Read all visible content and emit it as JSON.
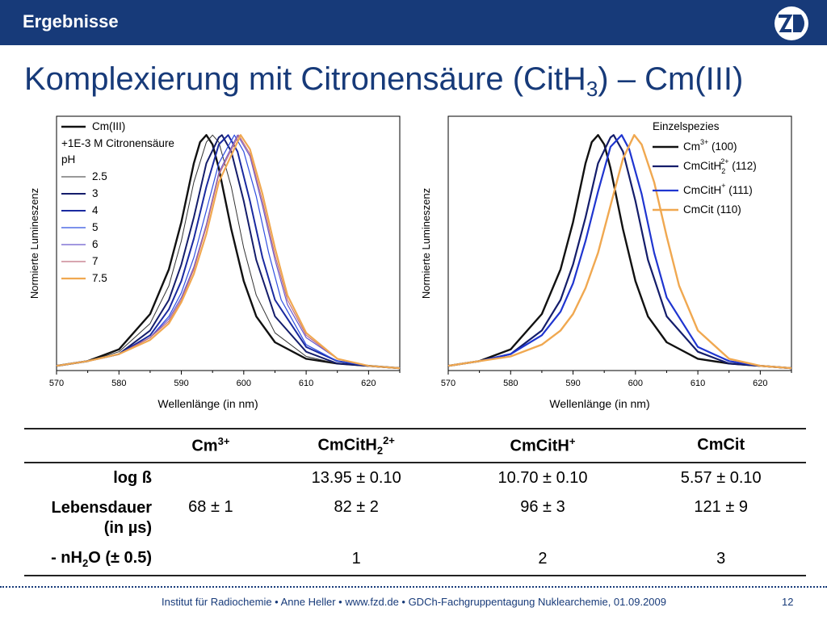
{
  "header": {
    "section": "Ergebnisse",
    "title": "Komplexierung mit Citronensäure (CitH",
    "title_sub": "3",
    "title_tail": ") – Cm(III)"
  },
  "colors": {
    "brand": "#173a79",
    "cm": "#111111",
    "cmcith2": "#141d6b",
    "cmcith": "#1f35d0",
    "cmcit": "#f0a850"
  },
  "chart_data": [
    {
      "type": "line",
      "xlabel": "Wellenlänge (in nm)",
      "ylabel": "Normierte Lumineszenz",
      "xlim": [
        570,
        625
      ],
      "ylim": [
        0,
        1.08
      ],
      "xticks": [
        570,
        580,
        590,
        600,
        610,
        620
      ],
      "legend": {
        "position": "top-left",
        "lines": [
          "Cm(III)",
          "+1E-3 M Citronensäure",
          "pH"
        ]
      },
      "series": [
        {
          "name": "Cm(III)",
          "peak": 594.0,
          "width": 3.6,
          "color": "#111111",
          "stroke": 2.4,
          "x": [
            570,
            575,
            580,
            585,
            588,
            590,
            592,
            593,
            594,
            595,
            596,
            598,
            600,
            602,
            605,
            610,
            615,
            620,
            625
          ],
          "y": [
            0.02,
            0.04,
            0.09,
            0.24,
            0.43,
            0.63,
            0.88,
            0.97,
            1.0,
            0.96,
            0.86,
            0.6,
            0.38,
            0.23,
            0.12,
            0.05,
            0.03,
            0.02,
            0.01
          ]
        },
        {
          "name": "2.5",
          "peak": 595.0,
          "width": 3.8,
          "color": "#333333",
          "stroke": 1.0,
          "x": [
            570,
            575,
            580,
            585,
            588,
            590,
            592,
            594,
            595,
            596,
            598,
            600,
            602,
            605,
            610,
            615,
            620,
            625
          ],
          "y": [
            0.02,
            0.04,
            0.08,
            0.2,
            0.36,
            0.55,
            0.8,
            0.97,
            1.0,
            0.97,
            0.78,
            0.52,
            0.32,
            0.16,
            0.06,
            0.03,
            0.02,
            0.01
          ]
        },
        {
          "name": "3",
          "peak": 596.5,
          "width": 3.9,
          "color": "#141d6b",
          "stroke": 2.0,
          "x": [
            570,
            575,
            580,
            585,
            588,
            590,
            592,
            594,
            596,
            596.5,
            598,
            600,
            602,
            605,
            610,
            615,
            620,
            625
          ],
          "y": [
            0.02,
            0.04,
            0.07,
            0.17,
            0.3,
            0.45,
            0.65,
            0.88,
            0.99,
            1.0,
            0.93,
            0.72,
            0.47,
            0.23,
            0.08,
            0.03,
            0.02,
            0.01
          ]
        },
        {
          "name": "4",
          "peak": 597.5,
          "width": 4.0,
          "color": "#1a2aa0",
          "stroke": 2.0,
          "x": [
            570,
            575,
            580,
            585,
            588,
            590,
            592,
            594,
            596,
            597.5,
            599,
            601,
            603,
            605,
            610,
            615,
            620,
            625
          ],
          "y": [
            0.02,
            0.04,
            0.07,
            0.15,
            0.26,
            0.38,
            0.56,
            0.78,
            0.96,
            1.0,
            0.93,
            0.72,
            0.48,
            0.3,
            0.1,
            0.04,
            0.02,
            0.01
          ]
        },
        {
          "name": "5",
          "peak": 598.5,
          "width": 4.1,
          "color": "#2f4fe0",
          "stroke": 1.2,
          "x": [
            570,
            575,
            580,
            585,
            588,
            590,
            592,
            594,
            596,
            598.5,
            600,
            602,
            604,
            606,
            610,
            615,
            620,
            625
          ],
          "y": [
            0.02,
            0.04,
            0.07,
            0.14,
            0.23,
            0.33,
            0.48,
            0.68,
            0.88,
            1.0,
            0.93,
            0.74,
            0.5,
            0.3,
            0.11,
            0.04,
            0.02,
            0.01
          ]
        },
        {
          "name": "6",
          "peak": 599.0,
          "width": 4.2,
          "color": "#6a5acd",
          "stroke": 1.2,
          "x": [
            570,
            575,
            580,
            585,
            588,
            590,
            592,
            594,
            596,
            599,
            601,
            603,
            605,
            607,
            610,
            615,
            620,
            625
          ],
          "y": [
            0.02,
            0.04,
            0.07,
            0.14,
            0.22,
            0.31,
            0.44,
            0.62,
            0.84,
            1.0,
            0.91,
            0.7,
            0.47,
            0.28,
            0.14,
            0.05,
            0.02,
            0.01
          ]
        },
        {
          "name": "7",
          "peak": 599.2,
          "width": 4.3,
          "color": "#c07080",
          "stroke": 1.2,
          "x": [
            570,
            575,
            580,
            585,
            588,
            590,
            592,
            594,
            596,
            599.2,
            601,
            603,
            605,
            607,
            610,
            615,
            620,
            625
          ],
          "y": [
            0.02,
            0.04,
            0.07,
            0.14,
            0.21,
            0.3,
            0.43,
            0.61,
            0.83,
            1.0,
            0.92,
            0.72,
            0.49,
            0.3,
            0.15,
            0.05,
            0.02,
            0.01
          ]
        },
        {
          "name": "7.5",
          "peak": 599.5,
          "width": 4.4,
          "color": "#f0a850",
          "stroke": 2.2,
          "x": [
            570,
            575,
            580,
            585,
            588,
            590,
            592,
            594,
            596,
            599.5,
            601,
            603,
            605,
            607,
            610,
            615,
            620,
            625
          ],
          "y": [
            0.02,
            0.04,
            0.07,
            0.13,
            0.2,
            0.29,
            0.41,
            0.58,
            0.8,
            1.0,
            0.94,
            0.75,
            0.52,
            0.32,
            0.16,
            0.05,
            0.02,
            0.01
          ]
        }
      ]
    },
    {
      "type": "line",
      "xlabel": "Wellenlänge (in nm)",
      "ylabel": "Normierte Lumineszenz",
      "xlim": [
        570,
        625
      ],
      "ylim": [
        0,
        1.08
      ],
      "xticks": [
        570,
        580,
        590,
        600,
        610,
        620
      ],
      "legend": {
        "position": "top-right",
        "title": "Einzelspezies"
      },
      "series": [
        {
          "name": "Cm",
          "sup": "3+",
          "suffix": " (100)",
          "color": "#111111",
          "stroke": 2.4,
          "x": [
            570,
            575,
            580,
            585,
            588,
            590,
            592,
            593,
            594,
            595,
            596,
            598,
            600,
            602,
            605,
            610,
            615,
            620,
            625
          ],
          "y": [
            0.02,
            0.04,
            0.09,
            0.24,
            0.43,
            0.63,
            0.88,
            0.97,
            1.0,
            0.96,
            0.86,
            0.6,
            0.38,
            0.23,
            0.12,
            0.05,
            0.03,
            0.02,
            0.01
          ]
        },
        {
          "name": "CmCitH",
          "sub": "2",
          "sup": "2+",
          "suffix": " (112)",
          "color": "#141d6b",
          "stroke": 2.2,
          "x": [
            570,
            575,
            580,
            585,
            588,
            590,
            592,
            594,
            596,
            596.5,
            598,
            600,
            602,
            605,
            610,
            615,
            620,
            625
          ],
          "y": [
            0.02,
            0.04,
            0.07,
            0.17,
            0.3,
            0.45,
            0.65,
            0.88,
            0.99,
            1.0,
            0.93,
            0.72,
            0.47,
            0.23,
            0.08,
            0.03,
            0.02,
            0.01
          ]
        },
        {
          "name": "CmCitH",
          "sup": "+",
          "suffix": " (111)",
          "color": "#1f35d0",
          "stroke": 2.2,
          "x": [
            570,
            575,
            580,
            585,
            588,
            590,
            592,
            594,
            596,
            597.8,
            599,
            601,
            603,
            605,
            610,
            615,
            620,
            625
          ],
          "y": [
            0.02,
            0.04,
            0.07,
            0.15,
            0.25,
            0.37,
            0.55,
            0.76,
            0.95,
            1.0,
            0.94,
            0.75,
            0.5,
            0.31,
            0.1,
            0.04,
            0.02,
            0.01
          ]
        },
        {
          "name": "CmCit",
          "suffix": " (110)",
          "color": "#f0a850",
          "stroke": 2.4,
          "x": [
            570,
            575,
            580,
            585,
            588,
            590,
            592,
            594,
            596,
            598,
            599.8,
            601,
            603,
            605,
            607,
            610,
            615,
            620,
            625
          ],
          "y": [
            0.02,
            0.04,
            0.06,
            0.11,
            0.17,
            0.24,
            0.35,
            0.5,
            0.7,
            0.9,
            1.0,
            0.96,
            0.8,
            0.57,
            0.36,
            0.17,
            0.05,
            0.02,
            0.01
          ]
        }
      ]
    }
  ],
  "table": {
    "headers": [
      {
        "base": "",
        "sub": "",
        "sup": ""
      },
      {
        "base": "Cm",
        "sub": "",
        "sup": "3+"
      },
      {
        "base": "CmCitH",
        "sub": "2",
        "sup": "2+"
      },
      {
        "base": "CmCitH",
        "sub": "",
        "sup": "+"
      },
      {
        "base": "CmCit",
        "sub": "",
        "sup": ""
      }
    ],
    "rows": [
      {
        "label": "log ß",
        "cells": [
          "",
          "13.95 ± 0.10",
          "10.70 ± 0.10",
          "5.57 ± 0.10"
        ]
      },
      {
        "label": "Lebensdauer",
        "label2": "(in µs)",
        "cells": [
          "68 ± 1",
          "82 ± 2",
          "96 ± 3",
          "121 ± 9"
        ]
      },
      {
        "label_pre": "- nH",
        "label_sub": "2",
        "label_post": "O (± 0.5)",
        "cells": [
          "",
          "1",
          "2",
          "3"
        ]
      }
    ]
  },
  "footer": {
    "text": "Institut für Radiochemie • Anne Heller • www.fzd.de • GDCh-Fachgruppentagung Nuklearchemie, 01.09.2009",
    "page": "12"
  }
}
